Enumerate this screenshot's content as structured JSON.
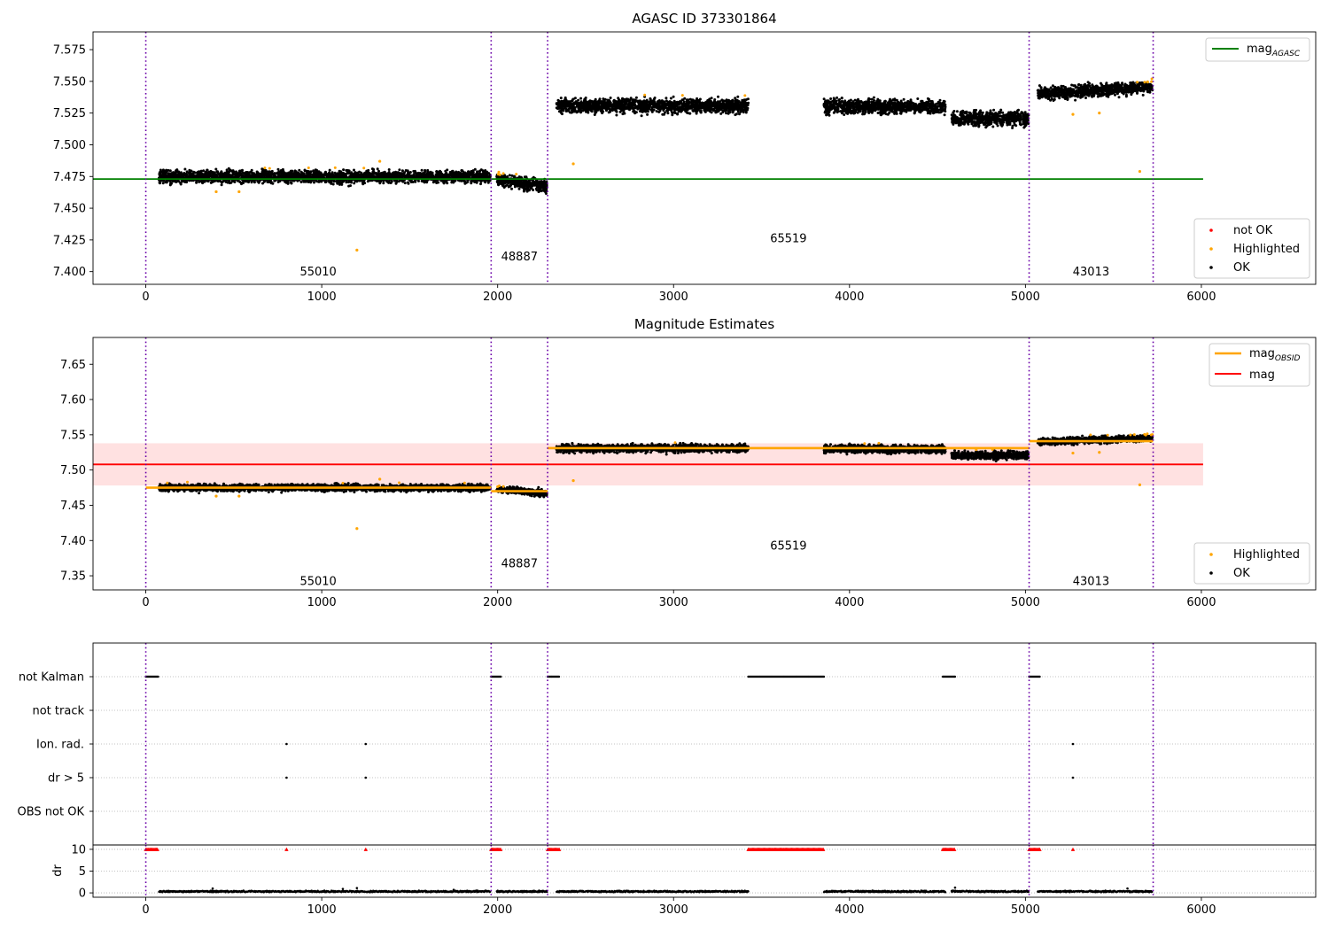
{
  "chart_data": [
    {
      "type": "scatter",
      "title": "AGASC ID 373301864",
      "xlim": [
        -300,
        6650
      ],
      "ylim": [
        7.39,
        7.589
      ],
      "xticks": [
        "0",
        "1000",
        "2000",
        "3000",
        "4000",
        "5000",
        "6000"
      ],
      "yticks": [
        "7.400",
        "7.425",
        "7.450",
        "7.475",
        "7.500",
        "7.525",
        "7.550",
        "7.575"
      ],
      "obs_boundaries": [
        0,
        1963,
        2284,
        5021,
        5726
      ],
      "obsid_labels": [
        {
          "text": "55010",
          "x": 980,
          "y": 7.397
        },
        {
          "text": "48887",
          "x": 2124,
          "y": 7.409
        },
        {
          "text": "65519",
          "x": 3653,
          "y": 7.423
        },
        {
          "text": "43013",
          "x": 5373,
          "y": 7.397
        }
      ],
      "reference_line": {
        "name": "mag_AGASC",
        "y": 7.473,
        "x_range": [
          0,
          6010
        ],
        "color": "#008000"
      },
      "segments": [
        {
          "x": [
            75,
            1958
          ],
          "mean": 7.475,
          "spread": 0.006,
          "trend": 0
        },
        {
          "x": [
            1995,
            2280
          ],
          "mean": 7.47,
          "spread": 0.006,
          "trend": -0.006
        },
        {
          "x": [
            2335,
            3425
          ],
          "mean": 7.531,
          "spread": 0.007,
          "trend": 0
        },
        {
          "x": [
            3855,
            4545
          ],
          "mean": 7.53,
          "spread": 0.007,
          "trend": 0
        },
        {
          "x": [
            4580,
            5018
          ],
          "mean": 7.521,
          "spread": 0.007,
          "trend": 0
        },
        {
          "x": [
            5070,
            5722
          ],
          "mean": 7.543,
          "spread": 0.006,
          "trend": 0.006
        }
      ],
      "highlighted_outliers": [
        [
          1200,
          7.417
        ],
        [
          2430,
          7.485
        ],
        [
          5650,
          7.479
        ],
        [
          5270,
          7.524
        ],
        [
          5420,
          7.525
        ],
        [
          1330,
          7.487
        ],
        [
          400,
          7.463
        ],
        [
          530,
          7.463
        ]
      ],
      "series": [
        {
          "name": "not OK",
          "color": "#ff0000"
        },
        {
          "name": "Highlighted",
          "color": "#ffa500"
        },
        {
          "name": "OK",
          "color": "#000000"
        }
      ],
      "legends": [
        {
          "position": "top-right",
          "entries": [
            {
              "label": "mag",
              "sub": "AGASC",
              "kind": "line",
              "color": "#008000"
            }
          ]
        },
        {
          "position": "bottom-right",
          "entries": [
            {
              "label": "not OK",
              "kind": "marker",
              "color": "#ff0000"
            },
            {
              "label": "Highlighted",
              "kind": "marker",
              "color": "#ffa500"
            },
            {
              "label": "OK",
              "kind": "marker",
              "color": "#000000"
            }
          ]
        }
      ]
    },
    {
      "type": "scatter",
      "title": "Magnitude Estimates",
      "xlim": [
        -300,
        6650
      ],
      "ylim": [
        7.33,
        7.688
      ],
      "xticks": [
        "0",
        "1000",
        "2000",
        "3000",
        "4000",
        "5000",
        "6000"
      ],
      "yticks": [
        "7.35",
        "7.40",
        "7.45",
        "7.50",
        "7.55",
        "7.60",
        "7.65"
      ],
      "obs_boundaries": [
        0,
        1963,
        2284,
        5021,
        5726
      ],
      "obsid_labels": [
        {
          "text": "55010",
          "x": 980,
          "y": 7.337
        },
        {
          "text": "48887",
          "x": 2124,
          "y": 7.362
        },
        {
          "text": "65519",
          "x": 3653,
          "y": 7.387
        },
        {
          "text": "43013",
          "x": 5373,
          "y": 7.337
        }
      ],
      "mag_line": {
        "name": "mag",
        "y": 7.508,
        "band": [
          7.478,
          7.538
        ],
        "x_range": [
          0,
          6010
        ],
        "color": "#ff0000"
      },
      "mag_obsid": [
        {
          "x": [
            0,
            1963
          ],
          "y": 7.475
        },
        {
          "x": [
            1963,
            2284
          ],
          "y": 7.47
        },
        {
          "x": [
            2284,
            5021
          ],
          "y": 7.531
        },
        {
          "x": [
            5021,
            5726
          ],
          "y": 7.541
        }
      ],
      "segments": [
        {
          "x": [
            75,
            1958
          ],
          "mean": 7.475,
          "spread": 0.006,
          "trend": 0
        },
        {
          "x": [
            1995,
            2280
          ],
          "mean": 7.47,
          "spread": 0.006,
          "trend": -0.006
        },
        {
          "x": [
            2335,
            3425
          ],
          "mean": 7.531,
          "spread": 0.007,
          "trend": 0
        },
        {
          "x": [
            3855,
            4545
          ],
          "mean": 7.53,
          "spread": 0.007,
          "trend": 0
        },
        {
          "x": [
            4580,
            5018
          ],
          "mean": 7.521,
          "spread": 0.007,
          "trend": 0
        },
        {
          "x": [
            5070,
            5722
          ],
          "mean": 7.543,
          "spread": 0.006,
          "trend": 0.006
        }
      ],
      "highlighted_outliers": [
        [
          1200,
          7.417
        ],
        [
          2430,
          7.485
        ],
        [
          5650,
          7.479
        ],
        [
          5270,
          7.524
        ],
        [
          5420,
          7.525
        ],
        [
          1330,
          7.487
        ],
        [
          400,
          7.463
        ],
        [
          530,
          7.463
        ]
      ],
      "legends": [
        {
          "position": "top-right",
          "entries": [
            {
              "label": "mag",
              "sub": "OBSID",
              "kind": "line",
              "color": "#ffa500"
            },
            {
              "label": "mag",
              "kind": "line",
              "color": "#ff0000"
            }
          ]
        },
        {
          "position": "bottom-right",
          "entries": [
            {
              "label": "Highlighted",
              "kind": "marker",
              "color": "#ffa500"
            },
            {
              "label": "OK",
              "kind": "marker",
              "color": "#000000"
            }
          ]
        }
      ]
    },
    {
      "type": "scatter",
      "title": "",
      "xlim": [
        -300,
        6650
      ],
      "xticks": [
        "0",
        "1000",
        "2000",
        "3000",
        "4000",
        "5000",
        "6000"
      ],
      "obs_boundaries": [
        0,
        1963,
        2284,
        5021,
        5726
      ],
      "flag_categories": [
        "not Kalman",
        "not track",
        "Ion. rad.",
        "dr > 5",
        "OBS not OK"
      ],
      "flags": {
        "not Kalman": [
          [
            0,
            70
          ],
          [
            1963,
            2020
          ],
          [
            2284,
            2350
          ],
          [
            3425,
            3855
          ],
          [
            4530,
            4600
          ],
          [
            5021,
            5085
          ]
        ],
        "not track": [],
        "Ion. rad.": [
          [
            800,
            800
          ],
          [
            1250,
            1250
          ],
          [
            5270,
            5270
          ]
        ],
        "dr > 5": [
          [
            800,
            800
          ],
          [
            1250,
            1250
          ],
          [
            5270,
            5270
          ]
        ],
        "OBS not OK": []
      }
    },
    {
      "type": "scatter",
      "title": "",
      "ylabel": "dr",
      "xlim": [
        -300,
        6650
      ],
      "ylim": [
        -1,
        11
      ],
      "yticks": [
        "0",
        "5",
        "10"
      ],
      "xticks": [
        "0",
        "1000",
        "2000",
        "3000",
        "4000",
        "5000",
        "6000"
      ],
      "obs_boundaries": [
        0,
        1963,
        2284,
        5021,
        5726
      ],
      "clipped_value": 10,
      "clipped_ranges": [
        [
          0,
          70
        ],
        [
          800,
          800
        ],
        [
          1250,
          1250
        ],
        [
          1963,
          2020
        ],
        [
          2284,
          2350
        ],
        [
          3425,
          3855
        ],
        [
          4530,
          4600
        ],
        [
          5021,
          5085
        ],
        [
          5270,
          5270
        ]
      ],
      "dr_segments": [
        [
          75,
          1958
        ],
        [
          1995,
          2280
        ],
        [
          2335,
          3425
        ],
        [
          3855,
          4545
        ],
        [
          4580,
          5018
        ],
        [
          5070,
          5722
        ]
      ],
      "dr_typical": 0.3,
      "dr_outliers": [
        [
          380,
          1.0
        ],
        [
          1120,
          0.9
        ],
        [
          1200,
          1.1
        ],
        [
          1750,
          0.7
        ],
        [
          4600,
          1.2
        ],
        [
          5580,
          1.0
        ]
      ]
    }
  ]
}
